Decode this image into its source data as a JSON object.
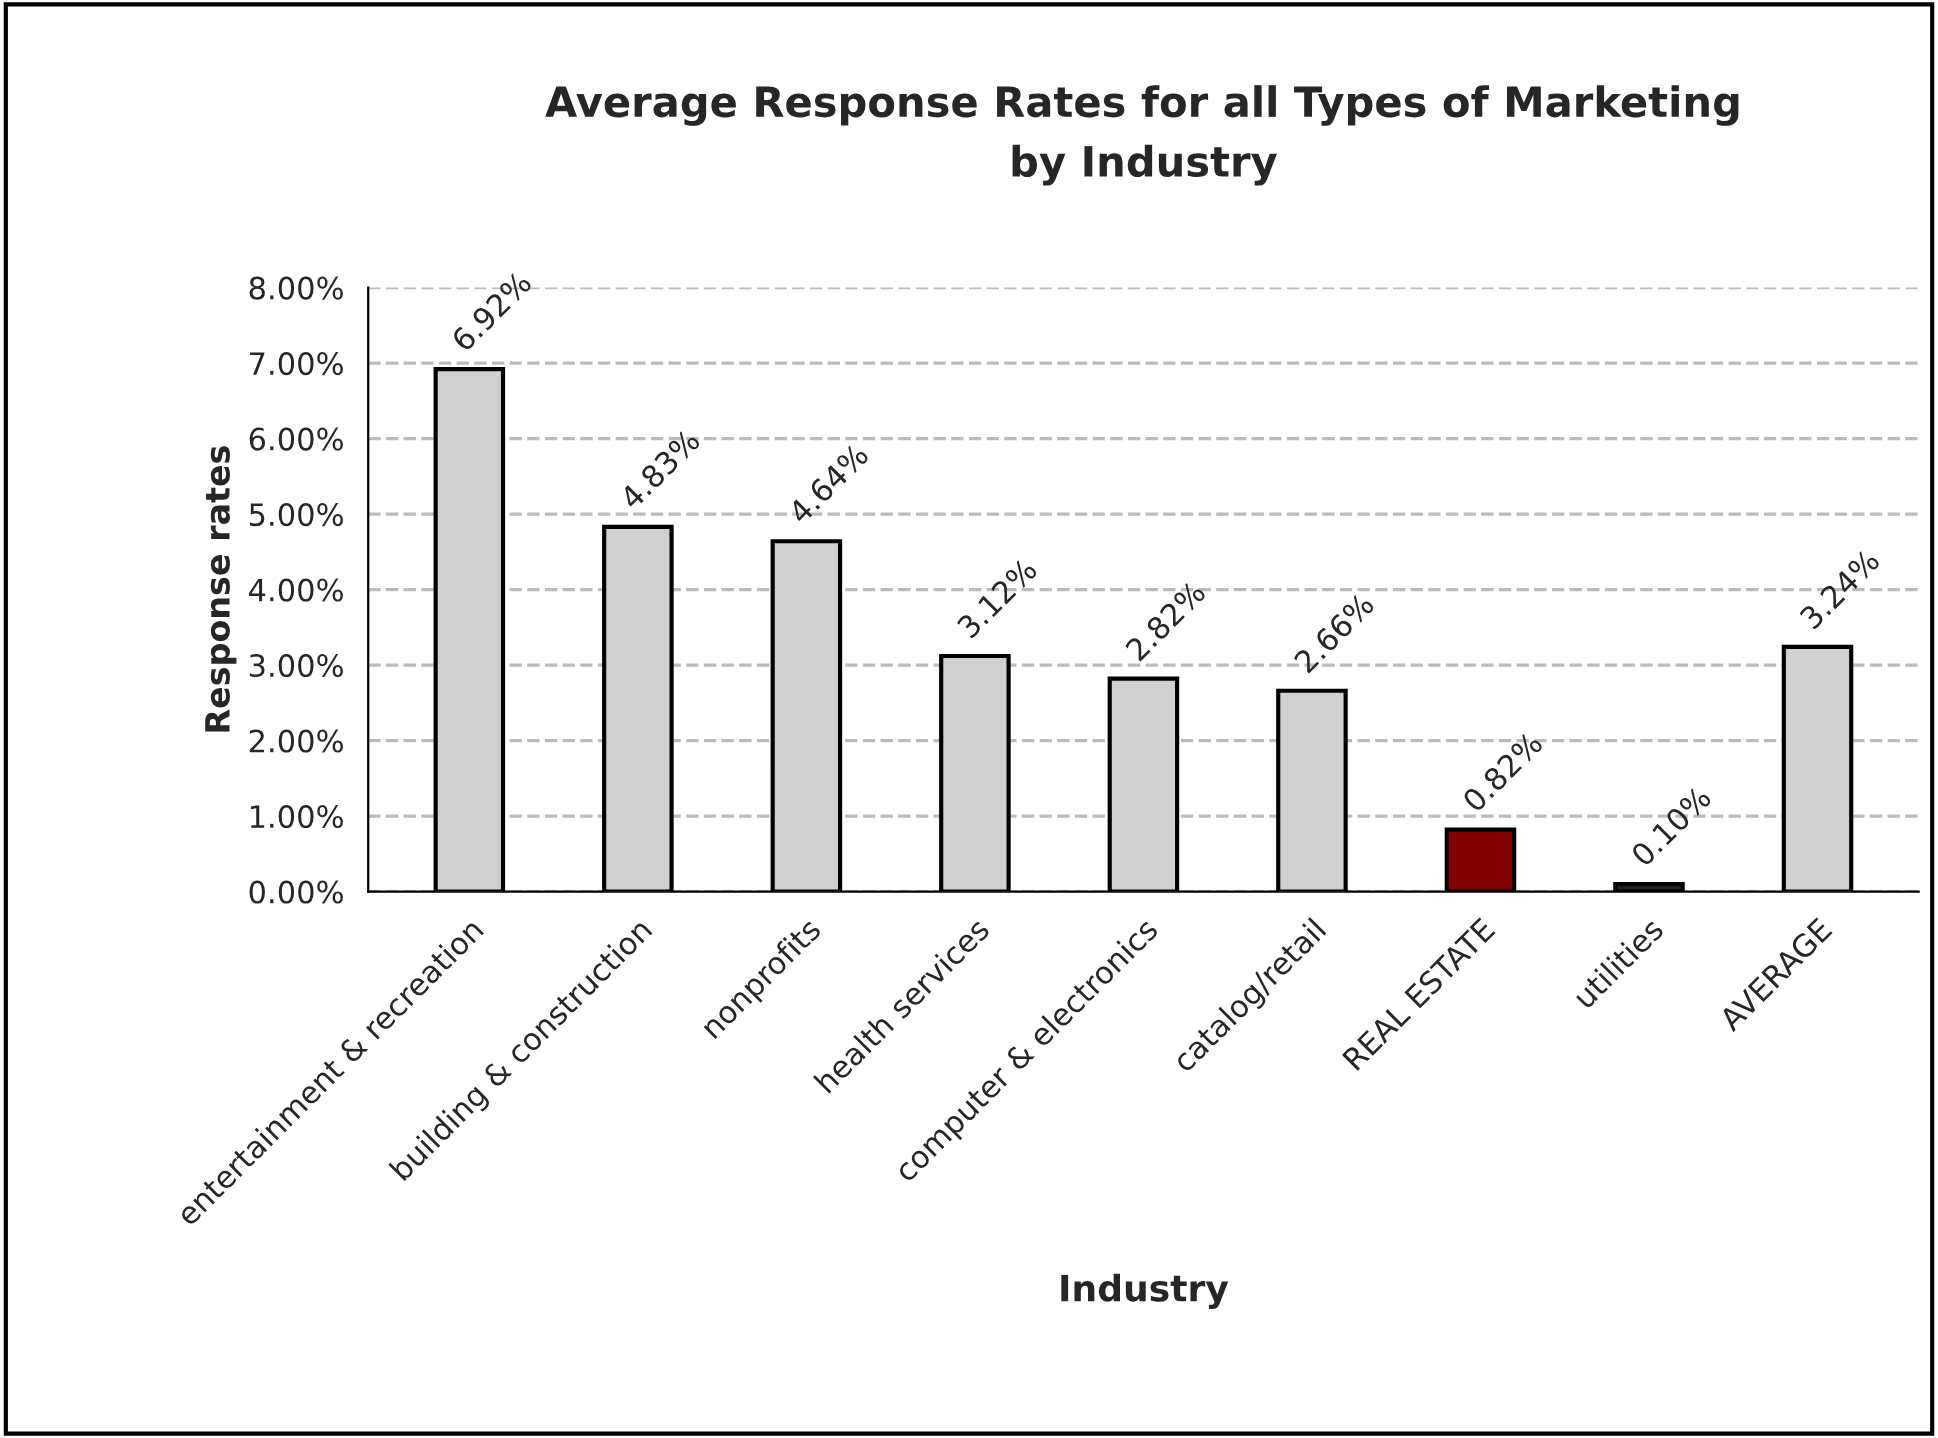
{
  "chart_data": {
    "type": "bar",
    "title": "Average Response Rates for all Types of Marketing\nby Industry",
    "xlabel": "Industry",
    "ylabel": "Response rates",
    "categories": [
      "entertainment & recreation",
      "building & construction",
      "nonprofits",
      "health services",
      "computer & electronics",
      "catalog/retail",
      "REAL ESTATE",
      "utilities",
      "AVERAGE"
    ],
    "values": [
      6.92,
      4.83,
      4.64,
      3.12,
      2.82,
      2.66,
      0.82,
      0.1,
      3.24
    ],
    "colors": [
      "#d0d0d0",
      "#d0d0d0",
      "#d0d0d0",
      "#d0d0d0",
      "#d0d0d0",
      "#d0d0d0",
      "#800000",
      "#202020",
      "#d0d0d0"
    ],
    "value_labels": [
      "6.92%",
      "4.83%",
      "4.64%",
      "3.12%",
      "2.82%",
      "2.66%",
      "0.82%",
      "0.10%",
      "3.24%"
    ],
    "ylim": [
      0,
      8
    ],
    "yticks": [
      {
        "value": 0,
        "label": "0.00%"
      },
      {
        "value": 1,
        "label": "1.00%"
      },
      {
        "value": 2,
        "label": "2.00%"
      },
      {
        "value": 3,
        "label": "3.00%"
      },
      {
        "value": 4,
        "label": "4.00%"
      },
      {
        "value": 5,
        "label": "5.00%"
      },
      {
        "value": 6,
        "label": "6.00%"
      },
      {
        "value": 7,
        "label": "7.00%"
      },
      {
        "value": 8,
        "label": "8.00%"
      }
    ],
    "grid": "y",
    "legend": false
  }
}
